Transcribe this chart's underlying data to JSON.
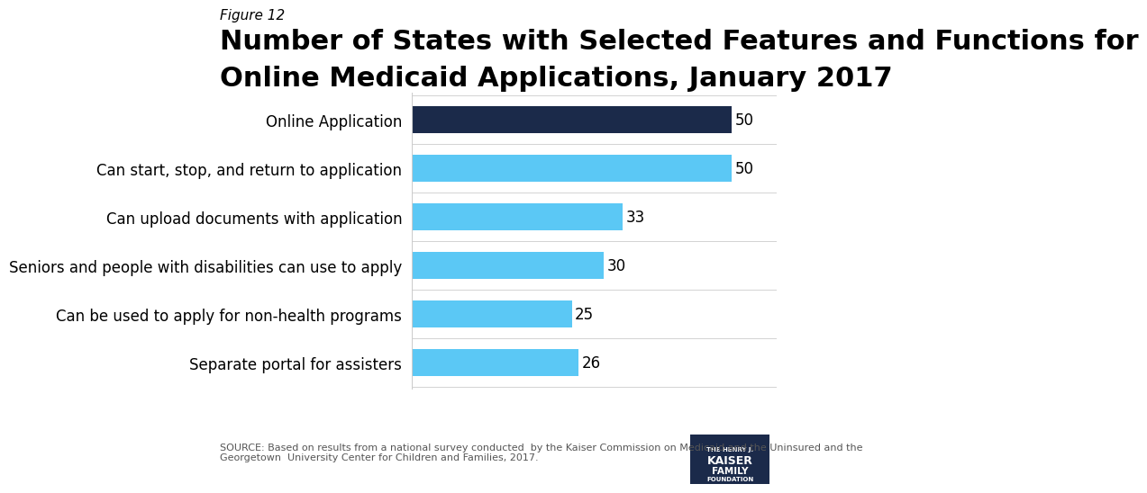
{
  "categories": [
    "Separate portal for assisters",
    "Can be used to apply for non-health programs",
    "Seniors and people with disabilities can use to apply",
    "Can upload documents with application",
    "Can start, stop, and return to application",
    "Online Application"
  ],
  "values": [
    26,
    25,
    30,
    33,
    50,
    50
  ],
  "bar_colors": [
    "#5bc8f5",
    "#5bc8f5",
    "#5bc8f5",
    "#5bc8f5",
    "#5bc8f5",
    "#1b2a4a"
  ],
  "figure_label": "Figure 12",
  "title_line1": "Number of States with Selected Features and Functions for",
  "title_line2": "Online Medicaid Applications, January 2017",
  "xlim": [
    0,
    57
  ],
  "xlabel": "",
  "ylabel": "",
  "source_text": "SOURCE: Based on results from a national survey conducted  by the Kaiser Commission on Medicaid and the Uninsured and the\nGeorgetown  University Center for Children and Families, 2017.",
  "background_color": "#ffffff",
  "bar_height": 0.55,
  "value_fontsize": 12,
  "label_fontsize": 12,
  "title_fontsize": 22,
  "figure_label_fontsize": 11
}
